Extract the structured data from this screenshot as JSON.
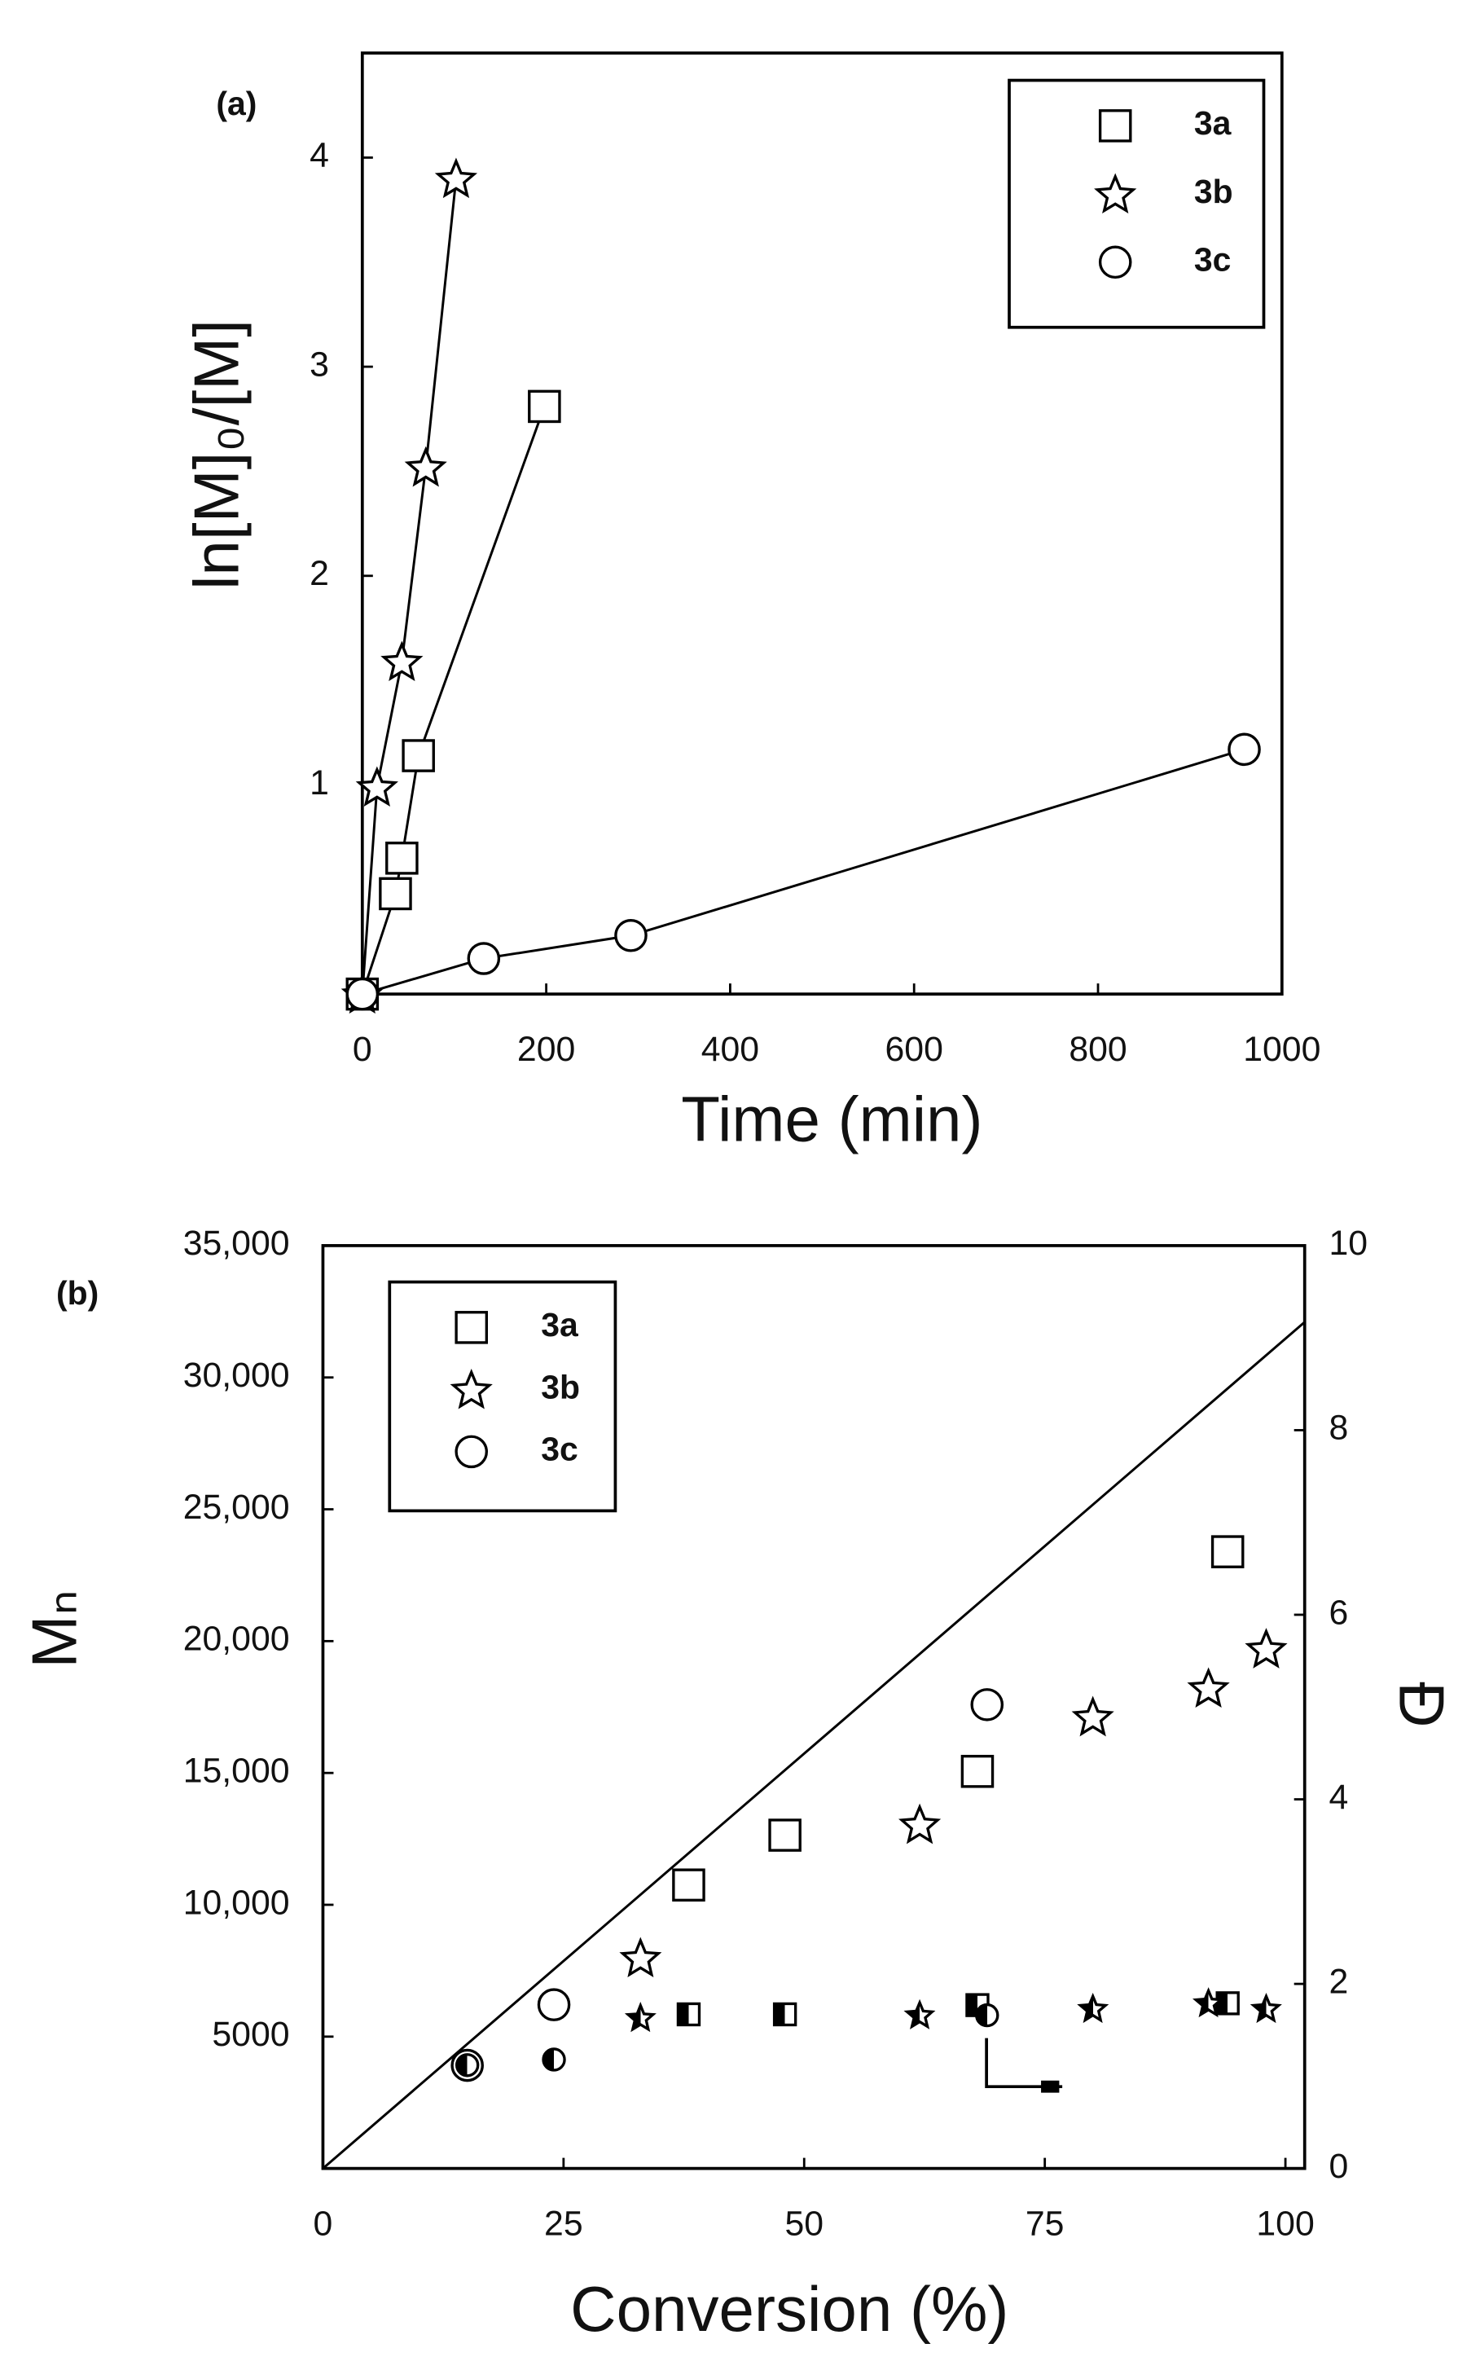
{
  "chart_data": [
    {
      "type": "line",
      "panel_label": "(a)",
      "xlabel": "Time (min)",
      "ylabel": "ln[M]₀/[M]",
      "xlim": [
        0,
        1000
      ],
      "ylim": [
        0,
        4.5
      ],
      "xticks": [
        0,
        200,
        400,
        600,
        800,
        1000
      ],
      "yticks": [
        1,
        2,
        3,
        4
      ],
      "legend": "upper right",
      "series": [
        {
          "name": "3a",
          "marker": "square",
          "color": "#000000",
          "line": true,
          "x": [
            0,
            36,
            43,
            61,
            198
          ],
          "values": [
            0,
            0.48,
            0.65,
            1.14,
            2.81
          ]
        },
        {
          "name": "3b",
          "marker": "star",
          "color": "#000000",
          "line": true,
          "x": [
            0,
            16,
            43,
            69,
            102
          ],
          "values": [
            0,
            0.99,
            1.59,
            2.52,
            3.9
          ]
        },
        {
          "name": "3c",
          "marker": "circle",
          "color": "#000000",
          "line": true,
          "x": [
            0,
            132,
            292,
            959
          ],
          "values": [
            0,
            0.17,
            0.28,
            1.17
          ]
        }
      ]
    },
    {
      "type": "scatter",
      "panel_label": "(b)",
      "xlabel": "Conversion (%)",
      "ylabel": "Mₙ",
      "y2label": "Đ",
      "xlim": [
        0,
        102
      ],
      "ylim": [
        0,
        35000
      ],
      "y2lim": [
        0,
        10
      ],
      "xticks": [
        0,
        25,
        50,
        75,
        100
      ],
      "yticks": [
        5000,
        {
          "value": 10000,
          "label": "10,000"
        },
        {
          "value": 15000,
          "label": "15,000"
        },
        {
          "value": 20000,
          "label": "20,000"
        },
        {
          "value": 25000,
          "label": "25,000"
        },
        {
          "value": 30000,
          "label": "30,000"
        },
        {
          "value": 35000,
          "label": "35,000"
        }
      ],
      "y2ticks": [
        0,
        2,
        4,
        6,
        8,
        10
      ],
      "legend": "upper left",
      "series": [
        {
          "marker": "none",
          "color": "#000000",
          "line": true,
          "x": [
            0,
            102
          ],
          "values": [
            0,
            32100
          ]
        },
        {
          "name": "3a",
          "marker": "square",
          "color": "#000000",
          "x": [
            38,
            48,
            68,
            94
          ],
          "values": [
            10750,
            12640,
            15060,
            23390
          ]
        },
        {
          "name": "3b",
          "marker": "star",
          "color": "#000000",
          "x": [
            33,
            62,
            80,
            92,
            98
          ],
          "values": [
            7990,
            13050,
            17130,
            18220,
            19710
          ]
        },
        {
          "name": "3c",
          "marker": "circle",
          "color": "#000000",
          "x": [
            15,
            24,
            69
          ],
          "values": [
            3910,
            6210,
            17590
          ]
        },
        {
          "marker": "square",
          "fill": "half",
          "axis": "y2",
          "color": "#000000",
          "x": [
            38,
            48,
            68,
            94
          ],
          "values": [
            1.67,
            1.67,
            1.77,
            1.79
          ]
        },
        {
          "marker": "star",
          "fill": "half",
          "axis": "y2",
          "color": "#000000",
          "x": [
            33,
            62,
            80,
            92,
            98
          ],
          "values": [
            1.64,
            1.67,
            1.74,
            1.8,
            1.74
          ]
        },
        {
          "marker": "circle",
          "fill": "half",
          "axis": "y2",
          "color": "#000000",
          "x": [
            15,
            24,
            69
          ],
          "values": [
            1.12,
            1.18,
            1.66
          ]
        }
      ]
    }
  ]
}
